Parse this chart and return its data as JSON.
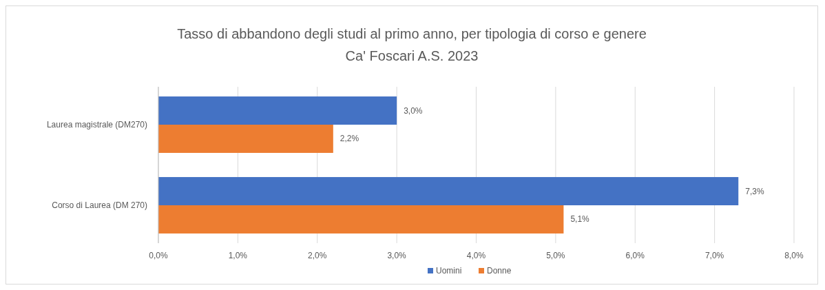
{
  "chart_data": {
    "type": "bar",
    "orientation": "horizontal",
    "title": "Tasso di abbandono degli studi al primo anno, per tipologia di corso e genere",
    "subtitle": "Ca' Foscari A.S. 2023",
    "categories": [
      "Laurea magistrale (DM270)",
      "Corso di Laurea (DM 270)"
    ],
    "series": [
      {
        "name": "Uomini",
        "color": "#4472c4",
        "values": [
          3.0,
          7.3
        ],
        "value_labels": [
          "3,0%",
          "7,3%"
        ]
      },
      {
        "name": "Donne",
        "color": "#ed7d31",
        "values": [
          2.2,
          5.1
        ],
        "value_labels": [
          "2,2%",
          "5,1%"
        ]
      }
    ],
    "xlim": [
      0,
      8
    ],
    "xticks": [
      {
        "value": 0,
        "label": "0,0%"
      },
      {
        "value": 1,
        "label": "1,0%"
      },
      {
        "value": 2,
        "label": "2,0%"
      },
      {
        "value": 3,
        "label": "3,0%"
      },
      {
        "value": 4,
        "label": "4,0%"
      },
      {
        "value": 5,
        "label": "5,0%"
      },
      {
        "value": 6,
        "label": "6,0%"
      },
      {
        "value": 7,
        "label": "7,0%"
      },
      {
        "value": 8,
        "label": "8,0%"
      }
    ],
    "grid": "x",
    "legend": "bottom"
  }
}
